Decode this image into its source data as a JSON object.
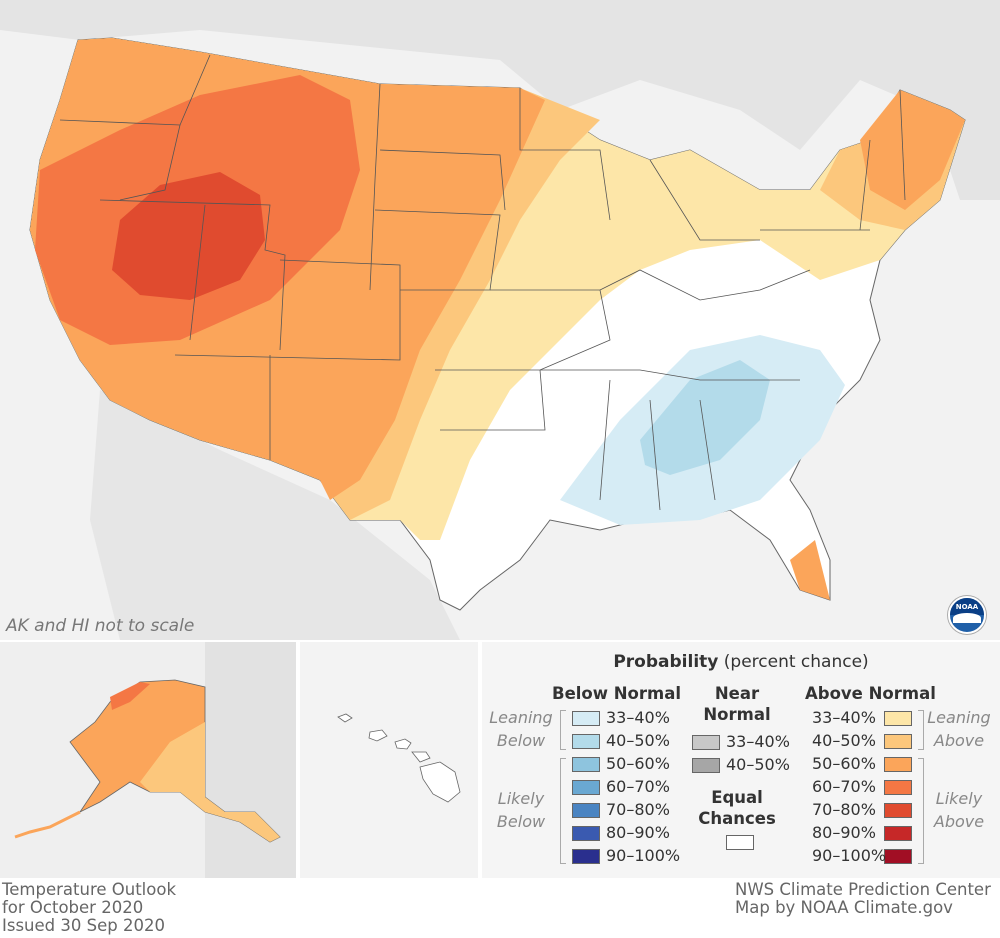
{
  "map": {
    "note": "AK and HI not to scale",
    "logo_text": "NOAA"
  },
  "legend": {
    "title": "Probability",
    "title_suffix": "(percent chance)",
    "below_header": "Below Normal",
    "near_header_1": "Near",
    "near_header_2": "Normal",
    "above_header": "Above Normal",
    "equal_1": "Equal",
    "equal_2": "Chances",
    "leaning_below_1": "Leaning",
    "leaning_below_2": "Below",
    "likely_below_1": "Likely",
    "likely_below_2": "Below",
    "leaning_above_1": "Leaning",
    "leaning_above_2": "Above",
    "likely_above_1": "Likely",
    "likely_above_2": "Above",
    "below": [
      {
        "label": "33–40%",
        "color": "#d6ecf5"
      },
      {
        "label": "40–50%",
        "color": "#b3dbea"
      },
      {
        "label": "50–60%",
        "color": "#8ec4de"
      },
      {
        "label": "60–70%",
        "color": "#6aa8d2"
      },
      {
        "label": "70–80%",
        "color": "#4a84c2"
      },
      {
        "label": "80–90%",
        "color": "#3a5ab0"
      },
      {
        "label": "90–100%",
        "color": "#2a2f8e"
      }
    ],
    "near": [
      {
        "label": "33–40%",
        "color": "#c8c8c8"
      },
      {
        "label": "40–50%",
        "color": "#a6a6a6"
      }
    ],
    "above": [
      {
        "label": "33–40%",
        "color": "#fde6a8"
      },
      {
        "label": "40–50%",
        "color": "#fcc77c"
      },
      {
        "label": "50–60%",
        "color": "#fba55a"
      },
      {
        "label": "60–70%",
        "color": "#f47744"
      },
      {
        "label": "70–80%",
        "color": "#e04b2f"
      },
      {
        "label": "80–90%",
        "color": "#c62828"
      },
      {
        "label": "90–100%",
        "color": "#a10e24"
      }
    ],
    "equal_color": "#ffffff"
  },
  "footer": {
    "left_1": "Temperature Outlook",
    "left_2": "for October 2020",
    "left_3": "Issued 30 Sep 2020",
    "right_1": "NWS Climate Prediction Center",
    "right_2": "Map by NOAA Climate.gov"
  }
}
